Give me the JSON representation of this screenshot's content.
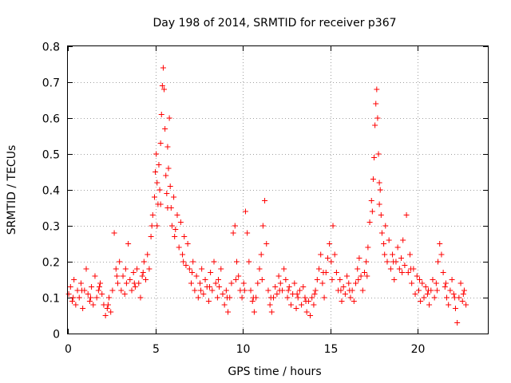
{
  "chart_data": {
    "type": "scatter",
    "title": "Day 198 of 2014, SRMTID for receiver p367",
    "xlabel": "GPS time / hours",
    "ylabel": "SRMTID / TECUs",
    "xlim": [
      0,
      24
    ],
    "ylim": [
      0,
      0.8
    ],
    "xticks": [
      0,
      5,
      10,
      15,
      20
    ],
    "yticks": [
      0,
      0.1,
      0.2,
      0.3,
      0.4,
      0.5,
      0.6,
      0.7,
      0.8
    ],
    "xtick_labels": [
      "0",
      "5",
      "10",
      "15",
      "20"
    ],
    "ytick_labels": [
      "0",
      "0.1",
      "0.2",
      "0.3",
      "0.4",
      "0.5",
      "0.6",
      "0.7",
      "0.8"
    ],
    "grid": true,
    "marker": "+",
    "color": "#ff0000",
    "series": [
      {
        "name": "SRMTID",
        "points": [
          [
            0.05,
            0.11
          ],
          [
            0.15,
            0.13
          ],
          [
            0.25,
            0.09
          ],
          [
            0.35,
            0.15
          ],
          [
            0.45,
            0.08
          ],
          [
            0.55,
            0.12
          ],
          [
            0.65,
            0.1
          ],
          [
            0.75,
            0.14
          ],
          [
            0.85,
            0.07
          ],
          [
            0.95,
            0.12
          ],
          [
            1.05,
            0.18
          ],
          [
            1.15,
            0.11
          ],
          [
            1.25,
            0.09
          ],
          [
            1.35,
            0.13
          ],
          [
            1.45,
            0.08
          ],
          [
            1.55,
            0.16
          ],
          [
            1.65,
            0.1
          ],
          [
            1.75,
            0.12
          ],
          [
            1.85,
            0.14
          ],
          [
            1.95,
            0.11
          ],
          [
            2.05,
            0.08
          ],
          [
            2.15,
            0.05
          ],
          [
            2.25,
            0.07
          ],
          [
            2.35,
            0.1
          ],
          [
            2.45,
            0.06
          ],
          [
            2.55,
            0.12
          ],
          [
            2.65,
            0.28
          ],
          [
            2.75,
            0.18
          ],
          [
            2.85,
            0.14
          ],
          [
            2.95,
            0.2
          ],
          [
            3.05,
            0.12
          ],
          [
            3.15,
            0.16
          ],
          [
            3.25,
            0.11
          ],
          [
            3.35,
            0.14
          ],
          [
            3.45,
            0.25
          ],
          [
            3.55,
            0.15
          ],
          [
            3.65,
            0.12
          ],
          [
            3.75,
            0.17
          ],
          [
            3.85,
            0.13
          ],
          [
            3.95,
            0.18
          ],
          [
            4.05,
            0.14
          ],
          [
            4.15,
            0.1
          ],
          [
            4.25,
            0.16
          ],
          [
            4.35,
            0.2
          ],
          [
            4.45,
            0.15
          ],
          [
            4.55,
            0.22
          ],
          [
            4.65,
            0.18
          ],
          [
            4.75,
            0.27
          ],
          [
            4.85,
            0.33
          ],
          [
            4.95,
            0.38
          ],
          [
            5.0,
            0.45
          ],
          [
            5.05,
            0.5
          ],
          [
            5.1,
            0.42
          ],
          [
            5.15,
            0.36
          ],
          [
            5.2,
            0.47
          ],
          [
            5.25,
            0.4
          ],
          [
            5.3,
            0.53
          ],
          [
            5.35,
            0.61
          ],
          [
            5.4,
            0.69
          ],
          [
            5.45,
            0.74
          ],
          [
            5.5,
            0.68
          ],
          [
            5.55,
            0.57
          ],
          [
            5.6,
            0.44
          ],
          [
            5.65,
            0.39
          ],
          [
            5.7,
            0.52
          ],
          [
            5.75,
            0.46
          ],
          [
            5.8,
            0.6
          ],
          [
            5.85,
            0.41
          ],
          [
            5.9,
            0.35
          ],
          [
            5.95,
            0.3
          ],
          [
            6.05,
            0.38
          ],
          [
            6.15,
            0.29
          ],
          [
            6.25,
            0.33
          ],
          [
            6.35,
            0.24
          ],
          [
            6.45,
            0.31
          ],
          [
            6.55,
            0.22
          ],
          [
            6.65,
            0.27
          ],
          [
            6.75,
            0.19
          ],
          [
            6.85,
            0.25
          ],
          [
            6.95,
            0.18
          ],
          [
            7.05,
            0.14
          ],
          [
            7.15,
            0.2
          ],
          [
            7.25,
            0.12
          ],
          [
            7.35,
            0.16
          ],
          [
            7.45,
            0.1
          ],
          [
            7.55,
            0.14
          ],
          [
            7.65,
            0.18
          ],
          [
            7.75,
            0.11
          ],
          [
            7.85,
            0.15
          ],
          [
            7.95,
            0.13
          ],
          [
            8.05,
            0.09
          ],
          [
            8.15,
            0.17
          ],
          [
            8.25,
            0.12
          ],
          [
            8.35,
            0.2
          ],
          [
            8.45,
            0.14
          ],
          [
            8.55,
            0.1
          ],
          [
            8.65,
            0.13
          ],
          [
            8.75,
            0.18
          ],
          [
            8.85,
            0.11
          ],
          [
            8.95,
            0.08
          ],
          [
            9.05,
            0.12
          ],
          [
            9.15,
            0.06
          ],
          [
            9.25,
            0.1
          ],
          [
            9.35,
            0.14
          ],
          [
            9.45,
            0.28
          ],
          [
            9.55,
            0.3
          ],
          [
            9.65,
            0.2
          ],
          [
            9.75,
            0.16
          ],
          [
            9.85,
            0.12
          ],
          [
            9.95,
            0.1
          ],
          [
            10.05,
            0.14
          ],
          [
            10.15,
            0.34
          ],
          [
            10.25,
            0.28
          ],
          [
            10.35,
            0.2
          ],
          [
            10.45,
            0.12
          ],
          [
            10.55,
            0.09
          ],
          [
            10.65,
            0.06
          ],
          [
            10.75,
            0.1
          ],
          [
            10.85,
            0.14
          ],
          [
            10.95,
            0.18
          ],
          [
            11.05,
            0.22
          ],
          [
            11.15,
            0.3
          ],
          [
            11.25,
            0.37
          ],
          [
            11.35,
            0.25
          ],
          [
            11.45,
            0.12
          ],
          [
            11.55,
            0.08
          ],
          [
            11.65,
            0.06
          ],
          [
            11.75,
            0.1
          ],
          [
            11.85,
            0.13
          ],
          [
            11.95,
            0.11
          ],
          [
            12.05,
            0.16
          ],
          [
            12.15,
            0.14
          ],
          [
            12.25,
            0.12
          ],
          [
            12.35,
            0.18
          ],
          [
            12.45,
            0.15
          ],
          [
            12.55,
            0.1
          ],
          [
            12.65,
            0.13
          ],
          [
            12.75,
            0.08
          ],
          [
            12.85,
            0.11
          ],
          [
            12.95,
            0.14
          ],
          [
            13.05,
            0.07
          ],
          [
            13.15,
            0.1
          ],
          [
            13.25,
            0.12
          ],
          [
            13.35,
            0.08
          ],
          [
            13.45,
            0.13
          ],
          [
            13.55,
            0.1
          ],
          [
            13.65,
            0.06
          ],
          [
            13.75,
            0.09
          ],
          [
            13.85,
            0.05
          ],
          [
            13.95,
            0.1
          ],
          [
            14.05,
            0.08
          ],
          [
            14.15,
            0.12
          ],
          [
            14.25,
            0.15
          ],
          [
            14.35,
            0.18
          ],
          [
            14.45,
            0.22
          ],
          [
            14.55,
            0.14
          ],
          [
            14.65,
            0.1
          ],
          [
            14.75,
            0.17
          ],
          [
            14.85,
            0.21
          ],
          [
            14.95,
            0.25
          ],
          [
            15.05,
            0.2
          ],
          [
            15.15,
            0.3
          ],
          [
            15.25,
            0.22
          ],
          [
            15.35,
            0.17
          ],
          [
            15.45,
            0.12
          ],
          [
            15.55,
            0.15
          ],
          [
            15.65,
            0.09
          ],
          [
            15.75,
            0.13
          ],
          [
            15.85,
            0.11
          ],
          [
            15.95,
            0.16
          ],
          [
            16.05,
            0.14
          ],
          [
            16.15,
            0.1
          ],
          [
            16.25,
            0.12
          ],
          [
            16.35,
            0.09
          ],
          [
            16.45,
            0.14
          ],
          [
            16.55,
            0.18
          ],
          [
            16.65,
            0.21
          ],
          [
            16.75,
            0.16
          ],
          [
            16.85,
            0.12
          ],
          [
            16.95,
            0.17
          ],
          [
            17.05,
            0.2
          ],
          [
            17.15,
            0.24
          ],
          [
            17.25,
            0.31
          ],
          [
            17.35,
            0.37
          ],
          [
            17.45,
            0.43
          ],
          [
            17.5,
            0.49
          ],
          [
            17.55,
            0.58
          ],
          [
            17.6,
            0.64
          ],
          [
            17.65,
            0.68
          ],
          [
            17.7,
            0.6
          ],
          [
            17.75,
            0.5
          ],
          [
            17.8,
            0.42
          ],
          [
            17.85,
            0.4
          ],
          [
            17.9,
            0.33
          ],
          [
            17.95,
            0.28
          ],
          [
            18.05,
            0.25
          ],
          [
            18.15,
            0.3
          ],
          [
            18.25,
            0.2
          ],
          [
            18.35,
            0.26
          ],
          [
            18.45,
            0.18
          ],
          [
            18.55,
            0.22
          ],
          [
            18.65,
            0.15
          ],
          [
            18.75,
            0.2
          ],
          [
            18.85,
            0.24
          ],
          [
            18.95,
            0.18
          ],
          [
            19.05,
            0.21
          ],
          [
            19.15,
            0.26
          ],
          [
            19.25,
            0.19
          ],
          [
            19.35,
            0.33
          ],
          [
            19.45,
            0.17
          ],
          [
            19.55,
            0.22
          ],
          [
            19.65,
            0.14
          ],
          [
            19.75,
            0.18
          ],
          [
            19.85,
            0.11
          ],
          [
            19.95,
            0.16
          ],
          [
            20.05,
            0.12
          ],
          [
            20.15,
            0.09
          ],
          [
            20.25,
            0.14
          ],
          [
            20.35,
            0.1
          ],
          [
            20.45,
            0.13
          ],
          [
            20.55,
            0.11
          ],
          [
            20.65,
            0.08
          ],
          [
            20.75,
            0.12
          ],
          [
            20.85,
            0.15
          ],
          [
            20.95,
            0.1
          ],
          [
            21.05,
            0.14
          ],
          [
            21.15,
            0.2
          ],
          [
            21.25,
            0.25
          ],
          [
            21.35,
            0.22
          ],
          [
            21.45,
            0.17
          ],
          [
            21.55,
            0.13
          ],
          [
            21.65,
            0.1
          ],
          [
            21.75,
            0.08
          ],
          [
            21.85,
            0.12
          ],
          [
            21.95,
            0.15
          ],
          [
            22.05,
            0.11
          ],
          [
            22.15,
            0.07
          ],
          [
            22.25,
            0.03
          ],
          [
            22.35,
            0.1
          ],
          [
            22.45,
            0.14
          ],
          [
            22.55,
            0.09
          ],
          [
            22.65,
            0.12
          ],
          [
            22.75,
            0.08
          ],
          [
            0.3,
            0.1
          ],
          [
            0.8,
            0.12
          ],
          [
            1.3,
            0.1
          ],
          [
            1.8,
            0.13
          ],
          [
            2.3,
            0.08
          ],
          [
            2.8,
            0.16
          ],
          [
            3.3,
            0.18
          ],
          [
            3.8,
            0.14
          ],
          [
            4.3,
            0.17
          ],
          [
            4.8,
            0.3
          ],
          [
            5.1,
            0.3
          ],
          [
            5.3,
            0.36
          ],
          [
            5.7,
            0.35
          ],
          [
            6.1,
            0.27
          ],
          [
            6.6,
            0.2
          ],
          [
            7.1,
            0.17
          ],
          [
            7.6,
            0.12
          ],
          [
            8.1,
            0.13
          ],
          [
            8.6,
            0.15
          ],
          [
            9.1,
            0.1
          ],
          [
            9.6,
            0.15
          ],
          [
            10.1,
            0.12
          ],
          [
            10.6,
            0.1
          ],
          [
            11.1,
            0.15
          ],
          [
            11.6,
            0.1
          ],
          [
            12.1,
            0.12
          ],
          [
            12.6,
            0.12
          ],
          [
            13.1,
            0.11
          ],
          [
            13.6,
            0.09
          ],
          [
            14.1,
            0.11
          ],
          [
            14.6,
            0.17
          ],
          [
            15.1,
            0.15
          ],
          [
            15.6,
            0.12
          ],
          [
            16.1,
            0.12
          ],
          [
            16.6,
            0.15
          ],
          [
            17.1,
            0.16
          ],
          [
            17.4,
            0.34
          ],
          [
            17.8,
            0.36
          ],
          [
            18.1,
            0.22
          ],
          [
            18.6,
            0.2
          ],
          [
            19.1,
            0.17
          ],
          [
            19.6,
            0.18
          ],
          [
            20.1,
            0.15
          ],
          [
            20.6,
            0.12
          ],
          [
            21.1,
            0.12
          ],
          [
            21.6,
            0.14
          ],
          [
            22.1,
            0.1
          ],
          [
            22.6,
            0.11
          ]
        ]
      }
    ]
  }
}
